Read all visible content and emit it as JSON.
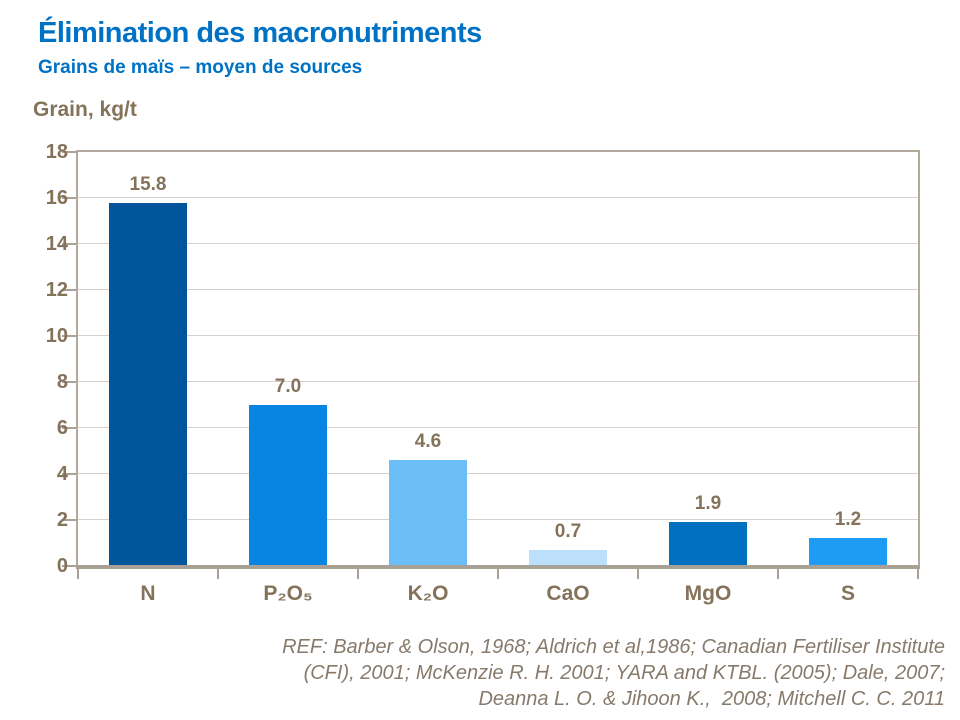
{
  "header": {
    "title": "Élimination des macronutriments",
    "subtitle": "Grains de maïs – moyen de sources"
  },
  "chart_data": {
    "type": "bar",
    "title": "Élimination des macronutriments",
    "subtitle": "Grains de maïs – moyen de sources",
    "ylabel": "Grain, kg/t",
    "xlabel": "",
    "categories": [
      "N",
      "P₂O₅",
      "K₂O",
      "CaO",
      "MgO",
      "S"
    ],
    "values": [
      15.8,
      7.0,
      4.6,
      0.7,
      1.9,
      1.2
    ],
    "value_labels": [
      "15.8",
      "7.0",
      "4.6",
      "0.7",
      "1.9",
      "1.2"
    ],
    "bar_colors": [
      "#00559B",
      "#0884E2",
      "#6BBEF7",
      "#BCDFFB",
      "#0070BF",
      "#1E9BF3"
    ],
    "ylim": [
      0,
      18
    ],
    "yticks": [
      0,
      2,
      4,
      6,
      8,
      10,
      12,
      14,
      16,
      18
    ],
    "grid": true,
    "legend": false
  },
  "footer": {
    "lines": [
      "REF: Barber & Olson, 1968; Aldrich et al,1986; Canadian Fertiliser Institute",
      "(CFI), 2001; McKenzie R. H. 2001; YARA and KTBL. (2005); Dale, 2007;",
      "Deanna L. O. & Jihoon K.,  2008; Mitchell C. C. 2011"
    ]
  },
  "colors": {
    "title_blue": "#0072C6",
    "text_brown": "#84735A",
    "footer_text": "#877A6B",
    "grid_line": "#D6D1C8",
    "frame": "#B2A89B",
    "axis_line": "#A9A096"
  }
}
